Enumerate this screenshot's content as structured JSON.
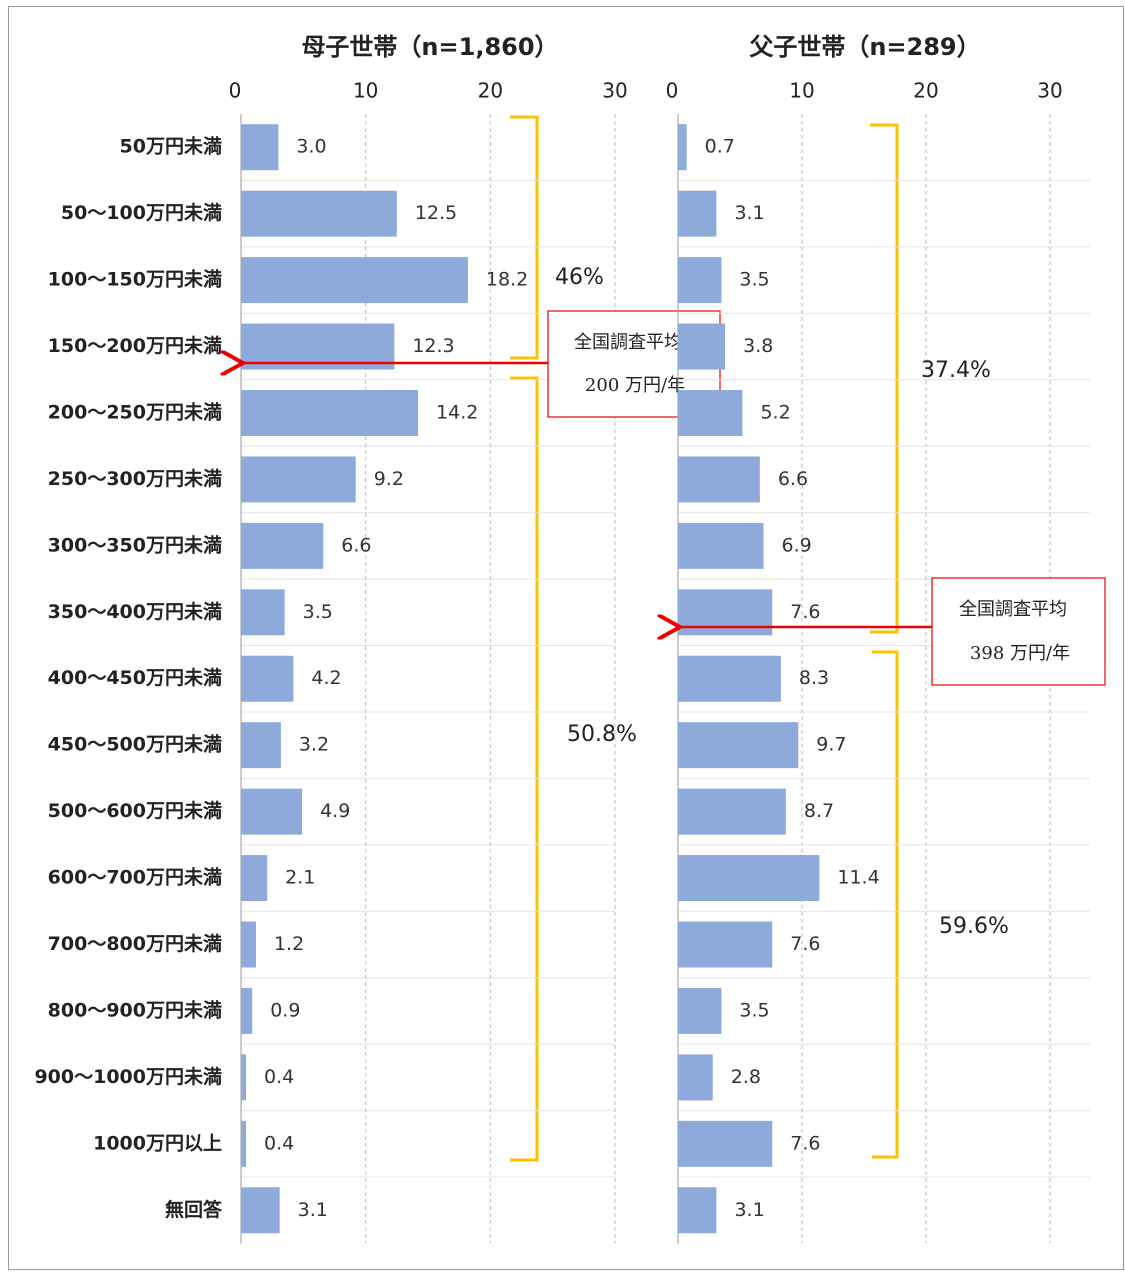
{
  "chart_data": [
    {
      "type": "bar",
      "title": "母子世帯（n=1,860）",
      "categories": [
        "50万円未満",
        "50～100万円未満",
        "100～150万円未満",
        "150～200万円未満",
        "200～250万円未満",
        "250～300万円未満",
        "300～350万円未満",
        "350～400万円未満",
        "400～450万円未満",
        "450～500万円未満",
        "500～600万円未満",
        "600～700万円未満",
        "700～800万円未満",
        "800～900万円未満",
        "900～1000万円未満",
        "1000万円以上",
        "無回答"
      ],
      "values": [
        3.0,
        12.5,
        18.2,
        12.3,
        14.2,
        9.2,
        6.6,
        3.5,
        4.2,
        3.2,
        4.9,
        2.1,
        1.2,
        0.9,
        0.4,
        0.4,
        3.1
      ],
      "value_labels": [
        "3.0",
        "12.5",
        "18.2",
        "12.3",
        "14.2",
        "9.2",
        "6.6",
        "3.5",
        "4.2",
        "3.2",
        "4.9",
        "2.1",
        "1.2",
        "0.9",
        "0.4",
        "0.4",
        "3.1"
      ],
      "color": "#8eaadb",
      "xlim": [
        0,
        30
      ],
      "xticks": [
        0,
        10,
        20,
        30
      ],
      "grid": true,
      "annotations": [
        "46%",
        "50.8%"
      ],
      "callout": [
        "全国調査平均",
        "200 万円/年"
      ]
    },
    {
      "type": "bar",
      "title": "父子世帯（n=289）",
      "values": [
        0.7,
        3.1,
        3.5,
        3.8,
        5.2,
        6.6,
        6.9,
        7.6,
        8.3,
        9.7,
        8.7,
        11.4,
        7.6,
        3.5,
        2.8,
        7.6,
        3.1
      ],
      "value_labels": [
        "0.7",
        "3.1",
        "3.5",
        "3.8",
        "5.2",
        "6.6",
        "6.9",
        "7.6",
        "8.3",
        "9.7",
        "8.7",
        "11.4",
        "7.6",
        "3.5",
        "2.8",
        "7.6",
        "3.1"
      ],
      "color": "#8eaadb",
      "xlim": [
        0,
        30
      ],
      "xticks": [
        0,
        10,
        20,
        30
      ],
      "grid": true,
      "annotations": [
        "37.4%",
        "59.6%"
      ],
      "callout": [
        "全国調査平均",
        "398 万円/年"
      ]
    }
  ]
}
